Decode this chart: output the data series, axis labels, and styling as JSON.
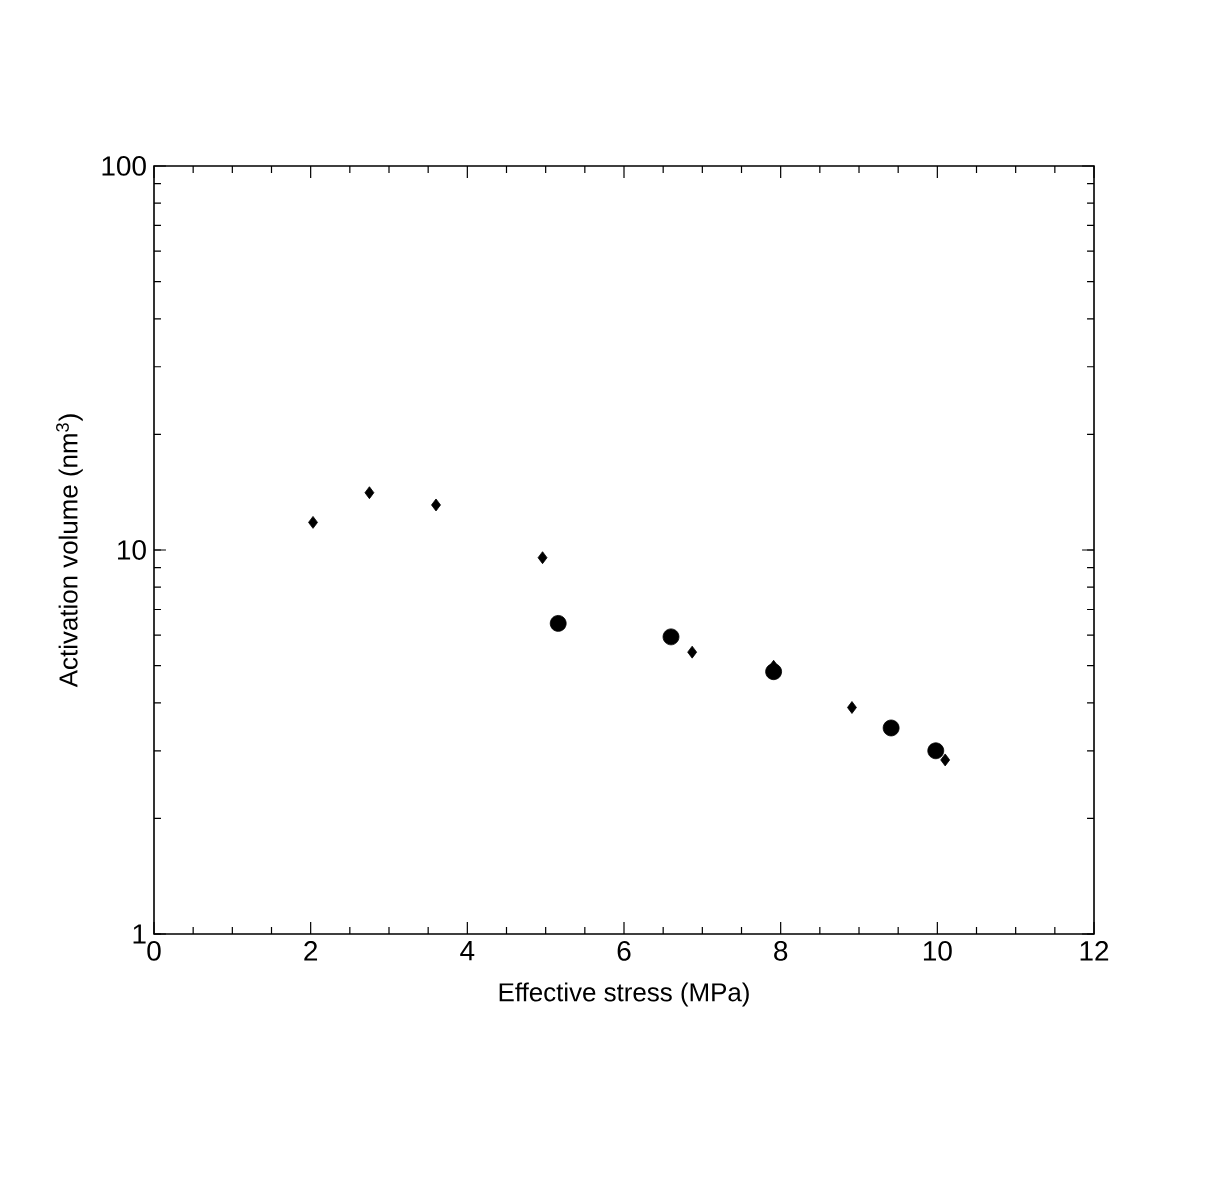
{
  "chart_data": {
    "type": "scatter",
    "xlabel": "Effective stress (MPa)",
    "ylabel": "Activation volume (nm$^{3}$)",
    "series": [
      {
        "color": "#000000",
        "marker": "diamond",
        "x": [
          2.03,
          2.75,
          3.6,
          4.96,
          6.87,
          7.91,
          8.91,
          10.1
        ],
        "values": [
          11.8,
          14.1,
          13.1,
          9.55,
          5.42,
          4.98,
          3.89,
          2.84
        ]
      },
      {
        "color": "#000000",
        "marker": "circle",
        "x": [
          5.16,
          6.6,
          7.91,
          9.41,
          9.98
        ],
        "values": [
          6.44,
          5.94,
          4.82,
          3.44,
          3.0
        ]
      }
    ],
    "log": "y",
    "xlim": [
      0,
      12
    ],
    "xticks": [
      0,
      2,
      4,
      6,
      8,
      10,
      12
    ],
    "ylim": [
      1,
      100
    ],
    "yticks": [
      1,
      10,
      100
    ],
    "grid": false
  }
}
